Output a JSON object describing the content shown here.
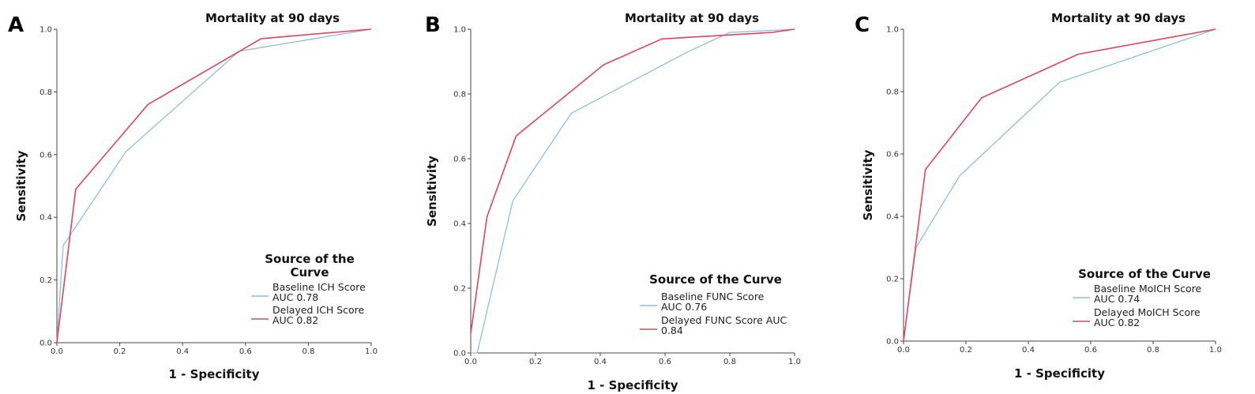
{
  "colors": {
    "baseline": "#8ebde3",
    "delayed": "#e2445c",
    "axis": "#444444"
  },
  "chart_data": [
    {
      "type": "line",
      "panel_label": "A",
      "title": "Mortality at 90 days",
      "xlabel": "1 - Specificity",
      "ylabel": "Sensitivity",
      "xlim": [
        0,
        1
      ],
      "ylim": [
        0,
        1
      ],
      "ticks": [
        "0.0",
        "0.2",
        "0.4",
        "0.6",
        "0.8",
        "1.0"
      ],
      "legend_title": [
        "Source of the",
        "Curve"
      ],
      "series": [
        {
          "key": "baseline",
          "legend_lines": [
            "Baseline ICH Score",
            "AUC 0.78"
          ],
          "x": [
            0,
            0.02,
            0.22,
            0.58,
            1.0
          ],
          "y": [
            0,
            0.31,
            0.61,
            0.93,
            1.0
          ]
        },
        {
          "key": "delayed",
          "legend_lines": [
            "Delayed ICH Score",
            "AUC 0.82"
          ],
          "x": [
            0,
            0.06,
            0.29,
            0.65,
            1.0
          ],
          "y": [
            0,
            0.49,
            0.76,
            0.97,
            1.0
          ]
        }
      ]
    },
    {
      "type": "line",
      "panel_label": "B",
      "title": "Mortality at 90 days",
      "xlabel": "1 - Specificity",
      "ylabel": "Sensitivity",
      "xlim": [
        0,
        1
      ],
      "ylim": [
        0,
        1
      ],
      "ticks": [
        "0.0",
        "0.2",
        "0.4",
        "0.6",
        "0.8",
        "1.0"
      ],
      "legend_title": [
        "Source of the Curve"
      ],
      "series": [
        {
          "key": "baseline",
          "legend_lines": [
            "Baseline FUNC Score",
            "AUC 0.76"
          ],
          "x": [
            0,
            0.02,
            0.13,
            0.31,
            0.67,
            0.8,
            1.0
          ],
          "y": [
            0,
            0.0,
            0.47,
            0.74,
            0.93,
            0.99,
            1.0
          ]
        },
        {
          "key": "delayed",
          "legend_lines": [
            "Delayed FUNC Score AUC",
            "0.84"
          ],
          "x": [
            0,
            0.05,
            0.14,
            0.41,
            0.59,
            0.93,
            1.0
          ],
          "y": [
            0.06,
            0.42,
            0.67,
            0.89,
            0.97,
            0.99,
            1.0
          ]
        }
      ]
    },
    {
      "type": "line",
      "panel_label": "C",
      "title": "Mortality at 90 days",
      "xlabel": "1 - Specificity",
      "ylabel": "Sensitivity",
      "xlim": [
        0,
        1
      ],
      "ylim": [
        0,
        1
      ],
      "ticks": [
        "0.0",
        "0.2",
        "0.4",
        "0.6",
        "0.8",
        "1.0"
      ],
      "legend_title": [
        "Source of the Curve"
      ],
      "series": [
        {
          "key": "baseline",
          "legend_lines": [
            "Baseline MoICH Score",
            "AUC 0.74"
          ],
          "x": [
            0,
            0.04,
            0.18,
            0.5,
            1.0
          ],
          "y": [
            0,
            0.3,
            0.53,
            0.83,
            1.0
          ]
        },
        {
          "key": "delayed",
          "legend_lines": [
            "Delayed MoICH Score",
            "AUC 0.82"
          ],
          "x": [
            0,
            0.07,
            0.25,
            0.56,
            1.0
          ],
          "y": [
            0,
            0.55,
            0.78,
            0.92,
            1.0
          ]
        }
      ]
    }
  ]
}
